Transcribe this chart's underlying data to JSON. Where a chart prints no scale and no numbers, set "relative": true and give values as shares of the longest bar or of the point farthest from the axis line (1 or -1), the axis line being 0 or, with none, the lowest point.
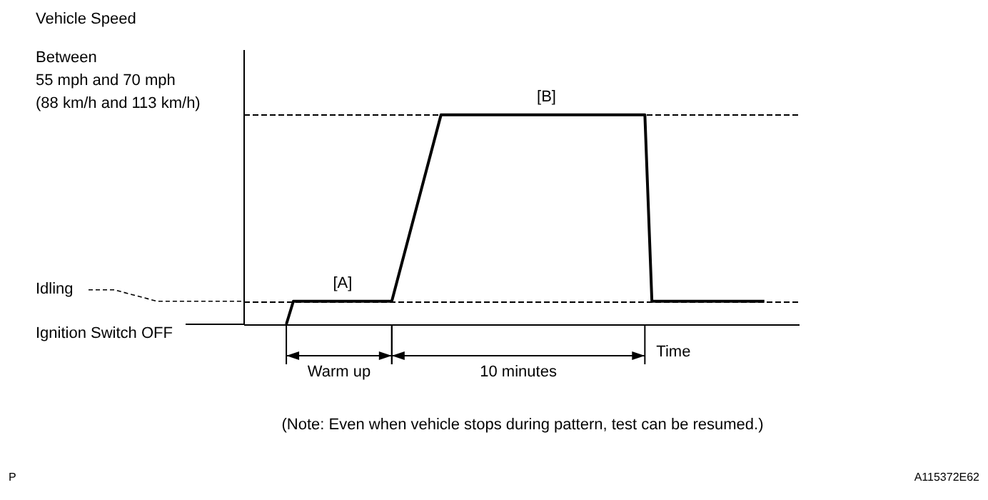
{
  "chart_data": {
    "type": "line",
    "relative": true,
    "grid": false,
    "marker": "none",
    "line_style": "solid",
    "categories": [
      null,
      null,
      null,
      null,
      null,
      null,
      null,
      null,
      null,
      null,
      null,
      null,
      null,
      null,
      null,
      null,
      null,
      null,
      null,
      null,
      null,
      null,
      null,
      null,
      null,
      null,
      null,
      null,
      null,
      null,
      null,
      null,
      null,
      null,
      null,
      null,
      null,
      null,
      null,
      null,
      null,
      null,
      null,
      null,
      null,
      null,
      null,
      null,
      null,
      null,
      null,
      null,
      null,
      null,
      null,
      null,
      null,
      null,
      null,
      null,
      null,
      null,
      null,
      null,
      null,
      null,
      null,
      null,
      null,
      null,
      null,
      null,
      null,
      null,
      null,
      null,
      null,
      null,
      null,
      null
    ],
    "series": [
      {
        "color": "#000000",
        "values": [
          null,
          null,
          null,
          null,
          null,
          null,
          0,
          0.11,
          0.11,
          0.11,
          0.11,
          0.11,
          0.11,
          0.11,
          0.11,
          0.11,
          0.11,
          0.11,
          0.11,
          0.11,
          0.11,
          0.11,
          null,
          null,
          null,
          null,
          null,
          null,
          1,
          1,
          1,
          1,
          1,
          1,
          1,
          1,
          1,
          1,
          1,
          1,
          1,
          1,
          1,
          1,
          1,
          1,
          1,
          1,
          1,
          1,
          1,
          1,
          1,
          1,
          1,
          1,
          1,
          1,
          0.11,
          0.11,
          0.11,
          0.11,
          0.11,
          0.11,
          0.11,
          0.11,
          0.11,
          0.11,
          0.11,
          0.11,
          0.11,
          0.11,
          0.11,
          0.11,
          0.11,
          null,
          null,
          null,
          null,
          null
        ]
      }
    ],
    "ref_lines": [
      {
        "axis": "y",
        "value": 1,
        "label": "Between\n55 mph and 70 mph\n(88 km/h and 113 km/h)",
        "line_style": "dashed",
        "color": "#000000"
      },
      {
        "axis": "y",
        "value": 0.11,
        "label": "Idling",
        "line_style": "dashed",
        "color": "#000000"
      },
      {
        "axis": "y",
        "value": 0,
        "label": "Ignition Switch OFF",
        "line_style": "solid",
        "color": "#000000"
      }
    ],
    "xlabel": "Time",
    "annotations": [
      "[A]",
      "[B]",
      "Warm up",
      "10 minutes",
      "(Note: Even when vehicle stops during pattern, test can be resumed.)",
      "P",
      "A115372E62",
      "Vehicle Speed"
    ]
  }
}
